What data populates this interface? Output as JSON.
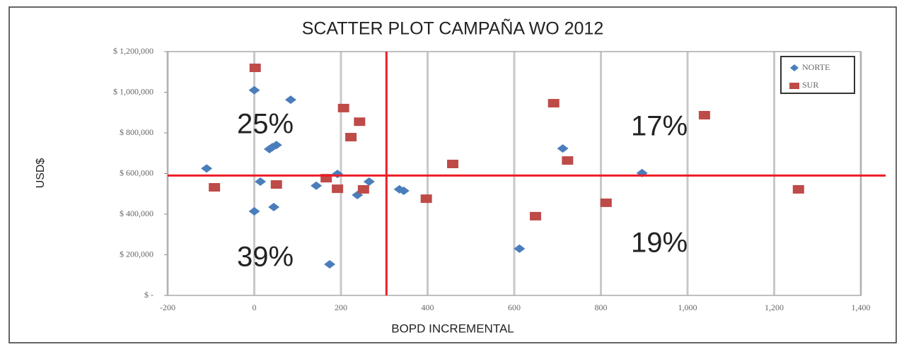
{
  "chart_data": {
    "type": "scatter",
    "title": "SCATTER PLOT CAMPAÑA WO 2012",
    "x_label": "BOPD INCREMENTAL",
    "y_label": "USD$",
    "xlim": [
      -200,
      1400
    ],
    "xticks": [
      -200,
      0,
      200,
      400,
      600,
      800,
      {
        "value": 1000,
        "label": "1,000"
      },
      {
        "value": 1200,
        "label": "1,200"
      },
      {
        "value": 1400,
        "label": "1,400"
      }
    ],
    "ylim": [
      0,
      1200000
    ],
    "yticks": [
      {
        "value": 0,
        "label": "$ -"
      },
      {
        "value": 200000,
        "label": "$ 200,000"
      },
      {
        "value": 400000,
        "label": "$ 400,000"
      },
      {
        "value": 600000,
        "label": "$ 600,000"
      },
      {
        "value": 800000,
        "label": "$ 800,000"
      },
      {
        "value": 1000000,
        "label": "$ 1,000,000"
      },
      {
        "value": 1200000,
        "label": "$ 1,200,000"
      }
    ],
    "grid": "x",
    "legend": "top-right",
    "reference_lines": {
      "x": 305,
      "y": 590000,
      "color": "#ee1c25"
    },
    "annotations": [
      "25%",
      "17%",
      "39%",
      "19%"
    ],
    "series": [
      {
        "name": "NORTE",
        "color": "#4a7ebb",
        "marker": "diamond",
        "x": [
          -110,
          0,
          84,
          35,
          42,
          51,
          14,
          0,
          45,
          143,
          192,
          174,
          238,
          265,
          335,
          345,
          612,
          712,
          895
        ],
        "values": [
          625000,
          1010000,
          963000,
          720000,
          730000,
          740000,
          560000,
          414000,
          435000,
          540000,
          598000,
          153000,
          494000,
          560000,
          522000,
          515000,
          230000,
          723000,
          602000
        ]
      },
      {
        "name": "SUR",
        "color": "#be4b48",
        "marker": "square",
        "x": [
          2,
          -92,
          51,
          206,
          243,
          223,
          166,
          192,
          252,
          397,
          458,
          691,
          723,
          649,
          812,
          1039,
          1256
        ],
        "values": [
          1120000,
          532000,
          546000,
          922000,
          855000,
          779000,
          577000,
          525000,
          522000,
          476000,
          647000,
          946000,
          664000,
          390000,
          456000,
          887000,
          522000
        ]
      }
    ]
  }
}
